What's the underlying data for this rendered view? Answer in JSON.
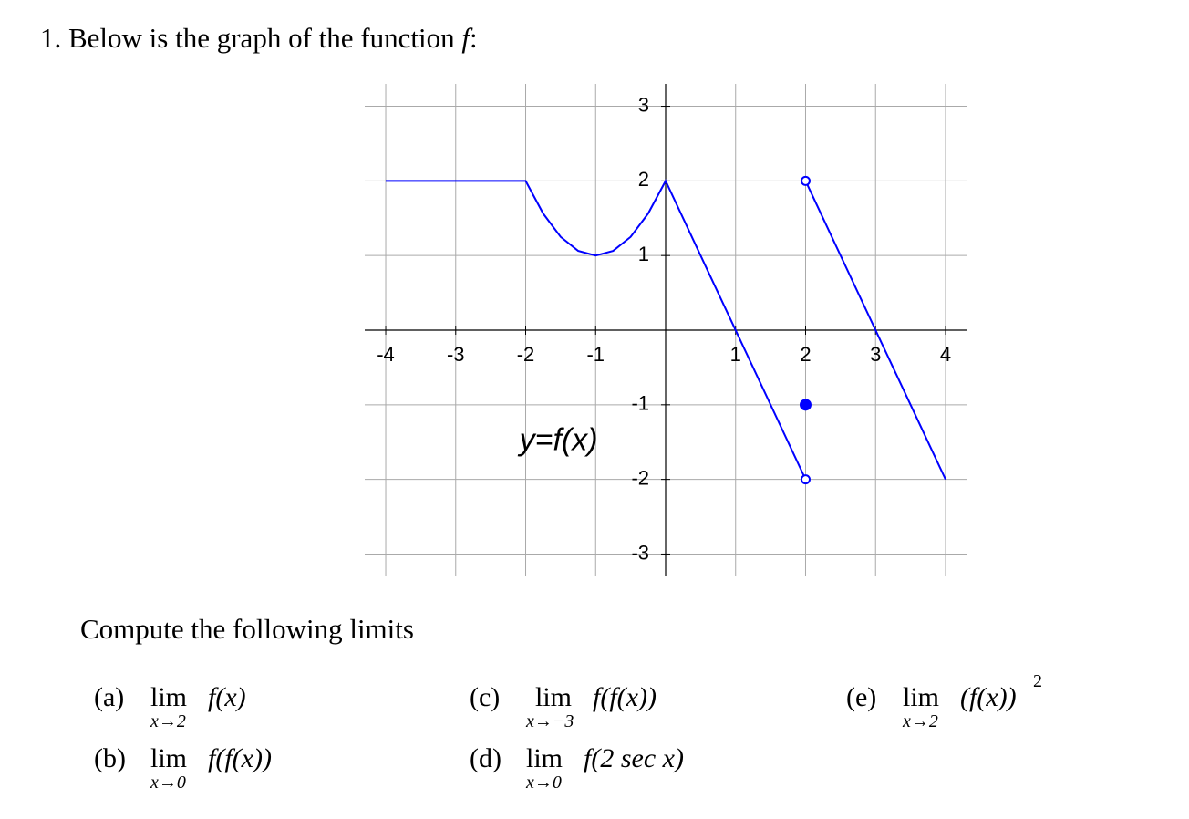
{
  "heading": {
    "number": "1.",
    "text": "Below is the graph of the function",
    "func": "f",
    "colon": ":"
  },
  "chart_data": {
    "type": "line",
    "x": [
      -4,
      -2,
      -1.75,
      -1.5,
      -1.25,
      -1,
      -0.75,
      -0.5,
      -0.25,
      0,
      2,
      2,
      2,
      4
    ],
    "series": [
      {
        "color": "#0000ff",
        "values": [
          2,
          2,
          1.5625,
          1.25,
          1.0625,
          1,
          1.0625,
          1.25,
          1.5625,
          2,
          -2,
          null,
          2,
          -2
        ]
      }
    ],
    "points": [
      {
        "x": 2,
        "y": 2,
        "filled": false
      },
      {
        "x": 2,
        "y": -2,
        "filled": false
      },
      {
        "x": 2,
        "y": -1,
        "filled": true
      }
    ],
    "annotation": "y=f(x)",
    "xlim": [
      -4.3,
      4.3
    ],
    "ylim": [
      -3.3,
      3.3
    ],
    "xticks": [
      -4,
      -3,
      -2,
      -1,
      1,
      2,
      3,
      4
    ],
    "yticks": [
      -3,
      -2,
      -1,
      1,
      2,
      3
    ],
    "grid": true
  },
  "subheading": "Compute the following limits",
  "items": [
    {
      "label": "(a)",
      "lim": "lim",
      "sub": "x→2",
      "expr": "f(x)"
    },
    {
      "label": "(b)",
      "lim": "lim",
      "sub": "x→0",
      "expr": "f(f(x))"
    },
    {
      "label": "(c)",
      "lim": "lim",
      "sub": "x→−3",
      "expr": "f(f(x))"
    },
    {
      "label": "(d)",
      "lim": "lim",
      "sub": "x→0",
      "expr": "f(2 sec x)"
    },
    {
      "label": "(e)",
      "lim": "lim",
      "sub": "x→2",
      "expr": "(f(x))",
      "sup": "2"
    }
  ]
}
